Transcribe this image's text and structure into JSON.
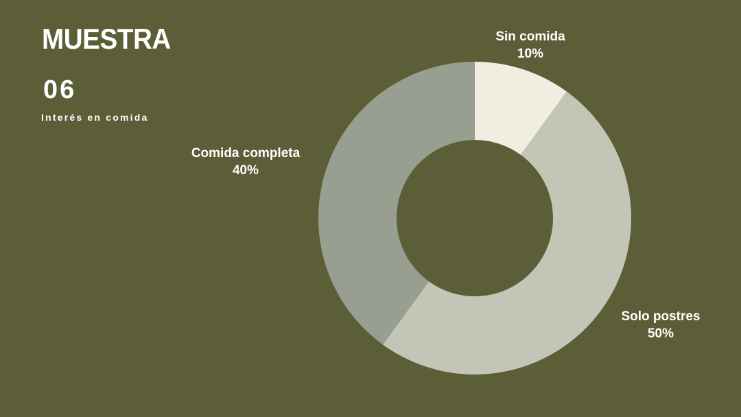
{
  "slide": {
    "title": "MUESTRA",
    "page_number": "06",
    "subtitle": "Interés en comida",
    "colors": {
      "background": "#5B5E37",
      "text": "#FFFFFF"
    }
  },
  "chart_data": {
    "type": "pie",
    "variant": "donut",
    "title": "Interés en comida",
    "categories": [
      "Sin comida",
      "Solo postres",
      "Comida completa"
    ],
    "values": [
      10,
      50,
      40
    ],
    "unit": "%",
    "start_angle_deg": 0,
    "direction": "clockwise",
    "inner_radius_ratio": 0.5,
    "legend_position": "labels-outside",
    "slices": [
      {
        "label": "Sin comida",
        "value": 10,
        "value_label": "10%",
        "color": "#F2EDE1",
        "label_position": "top"
      },
      {
        "label": "Solo postres",
        "value": 50,
        "value_label": "50%",
        "color": "#C3C6B6",
        "label_position": "right"
      },
      {
        "label": "Comida completa",
        "value": 40,
        "value_label": "40%",
        "color": "#989F91",
        "label_position": "left"
      }
    ]
  }
}
